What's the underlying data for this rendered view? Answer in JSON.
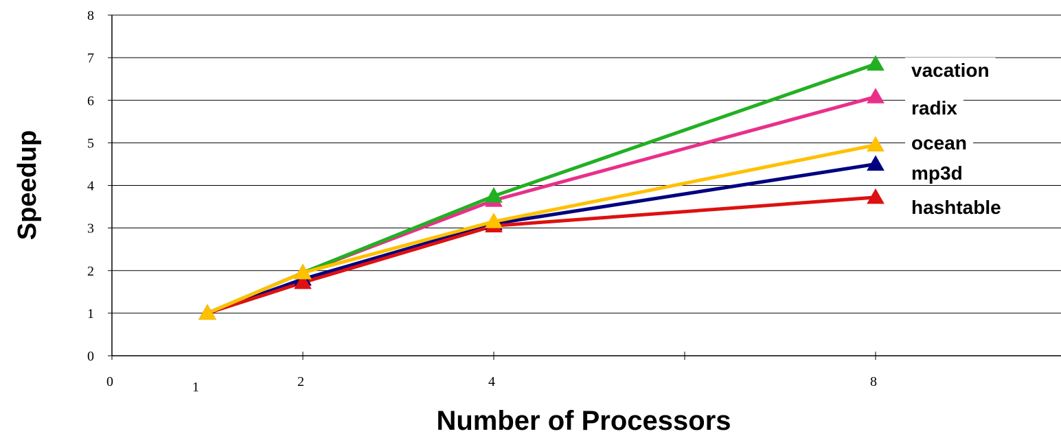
{
  "chart_data": {
    "type": "line",
    "xlabel": "Number of Processors",
    "ylabel": "Speedup",
    "xlim": [
      0,
      9.5
    ],
    "ylim": [
      0,
      8
    ],
    "x_ticks": [
      {
        "value": 0,
        "label": "0"
      },
      {
        "value": 1,
        "label": "1"
      },
      {
        "value": 2,
        "label": "2"
      },
      {
        "value": 4,
        "label": "4"
      },
      {
        "value": 8,
        "label": "8"
      }
    ],
    "x_tick_marks": [
      0,
      2,
      4,
      6,
      8
    ],
    "y_ticks": [
      0,
      1,
      2,
      3,
      4,
      5,
      6,
      7,
      8
    ],
    "grid": "horizontal",
    "legend": "series labels at right end of lines",
    "x": [
      1,
      2,
      4,
      8
    ],
    "series": [
      {
        "name": "vacation",
        "color": "#22b022",
        "values": [
          1,
          1.95,
          3.75,
          6.85
        ]
      },
      {
        "name": "radix",
        "color": "#e8308a",
        "values": [
          1,
          1.95,
          3.65,
          6.08
        ]
      },
      {
        "name": "ocean",
        "color": "#ffc000",
        "values": [
          1,
          1.95,
          3.15,
          4.95
        ]
      },
      {
        "name": "mp3d",
        "color": "#000080",
        "values": [
          1,
          1.8,
          3.1,
          4.5
        ]
      },
      {
        "name": "hashtable",
        "color": "#dd1111",
        "values": [
          1,
          1.72,
          3.05,
          3.72
        ]
      }
    ]
  }
}
